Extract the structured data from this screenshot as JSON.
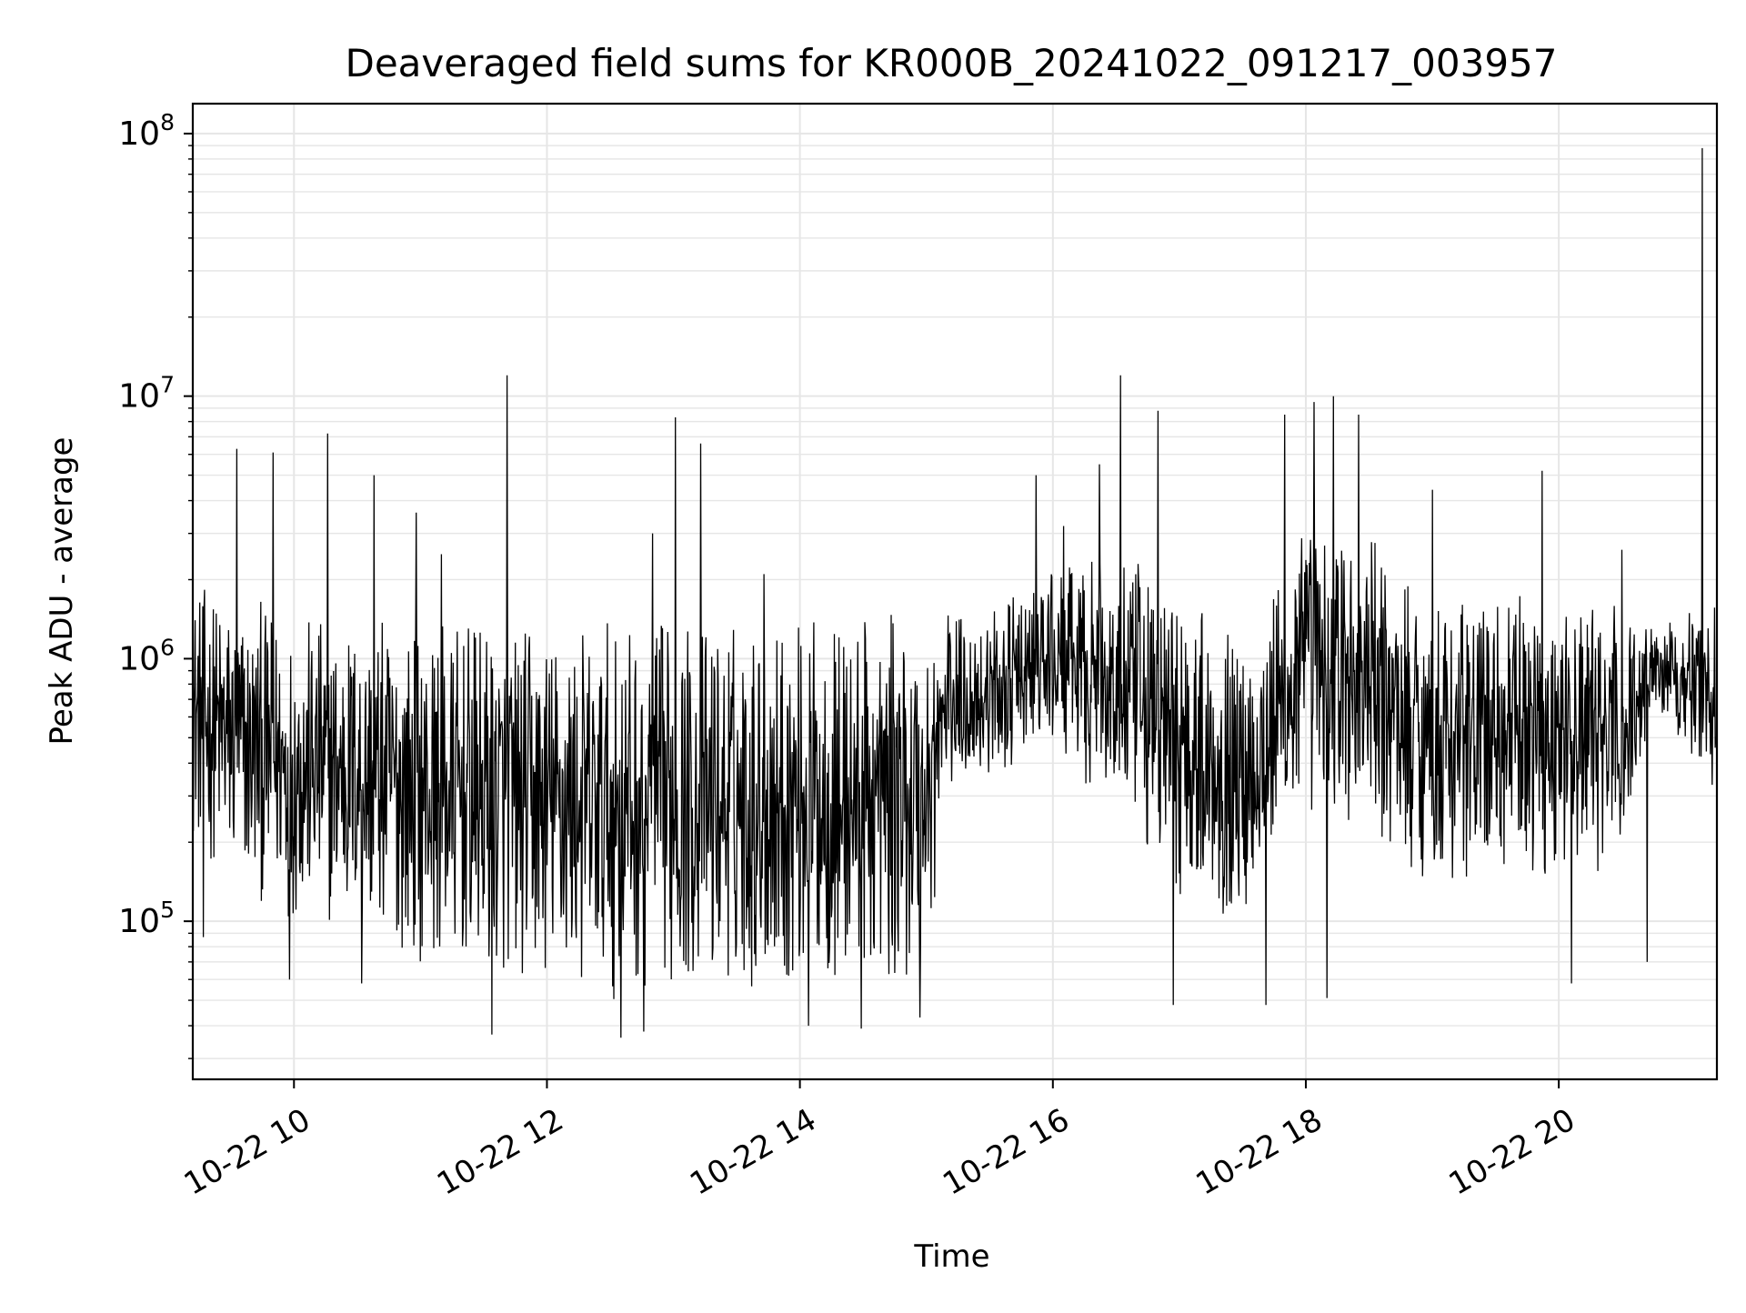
{
  "chart_data": {
    "type": "line",
    "title": "Deaveraged field sums for KR000B_20241022_091217_003957",
    "xlabel": "Time",
    "ylabel": "Peak ADU - average",
    "yscale": "log",
    "ylim": [
      25000,
      130000000
    ],
    "xlim": [
      "10-22 09:12",
      "10-22 21:15"
    ],
    "grid": true,
    "line_color": "#000000",
    "grid_color": "#e6e6e6",
    "x_ticks": [
      {
        "label": "10-22 10",
        "hour": 10
      },
      {
        "label": "10-22 12",
        "hour": 12
      },
      {
        "label": "10-22 14",
        "hour": 14
      },
      {
        "label": "10-22 16",
        "hour": 16
      },
      {
        "label": "10-22 18",
        "hour": 18
      },
      {
        "label": "10-22 20",
        "hour": 20
      }
    ],
    "y_ticks": [
      {
        "base": "10",
        "exp": "5",
        "value": 100000
      },
      {
        "base": "10",
        "exp": "6",
        "value": 1000000
      },
      {
        "base": "10",
        "exp": "7",
        "value": 10000000
      },
      {
        "base": "10",
        "exp": "8",
        "value": 100000000
      }
    ],
    "envelope": [
      {
        "t": "09:12",
        "low": 200000,
        "high": 2000000
      },
      {
        "t": "09:30",
        "low": 130000,
        "high": 1800000
      },
      {
        "t": "10:00",
        "low": 100000,
        "high": 1500000
      },
      {
        "t": "10:30",
        "low": 90000,
        "high": 1500000
      },
      {
        "t": "11:00",
        "low": 70000,
        "high": 1400000
      },
      {
        "t": "11:30",
        "low": 60000,
        "high": 1400000
      },
      {
        "t": "12:00",
        "low": 55000,
        "high": 1400000
      },
      {
        "t": "12:30",
        "low": 50000,
        "high": 1400000
      },
      {
        "t": "13:00",
        "low": 55000,
        "high": 1500000
      },
      {
        "t": "13:30",
        "low": 55000,
        "high": 1500000
      },
      {
        "t": "14:00",
        "low": 55000,
        "high": 1500000
      },
      {
        "t": "14:30",
        "low": 55000,
        "high": 1500000
      },
      {
        "t": "15:00",
        "low": 60000,
        "high": 1500000
      },
      {
        "t": "15:10",
        "low": 300000,
        "high": 1600000
      },
      {
        "t": "15:30",
        "low": 350000,
        "high": 1500000
      },
      {
        "t": "16:00",
        "low": 450000,
        "high": 2200000
      },
      {
        "t": "16:30",
        "low": 250000,
        "high": 2500000
      },
      {
        "t": "17:00",
        "low": 120000,
        "high": 2000000
      },
      {
        "t": "17:30",
        "low": 100000,
        "high": 1200000
      },
      {
        "t": "18:00",
        "low": 250000,
        "high": 3500000
      },
      {
        "t": "18:30",
        "low": 200000,
        "high": 3000000
      },
      {
        "t": "19:00",
        "low": 130000,
        "high": 1800000
      },
      {
        "t": "19:30",
        "low": 150000,
        "high": 1800000
      },
      {
        "t": "20:00",
        "low": 150000,
        "high": 1800000
      },
      {
        "t": "20:30",
        "low": 150000,
        "high": 1600000
      },
      {
        "t": "20:45",
        "low": 700000,
        "high": 1400000
      },
      {
        "t": "21:15",
        "low": 300000,
        "high": 1700000
      }
    ],
    "peaks": [
      {
        "t": "09:33",
        "value": 6300000
      },
      {
        "t": "09:50",
        "value": 6100000
      },
      {
        "t": "10:16",
        "value": 7200000
      },
      {
        "t": "10:38",
        "value": 5000000
      },
      {
        "t": "10:58",
        "value": 3600000
      },
      {
        "t": "11:10",
        "value": 2500000
      },
      {
        "t": "11:41",
        "value": 12000000
      },
      {
        "t": "12:50",
        "value": 3000000
      },
      {
        "t": "13:01",
        "value": 8300000
      },
      {
        "t": "13:13",
        "value": 6600000
      },
      {
        "t": "13:43",
        "value": 2100000
      },
      {
        "t": "15:52",
        "value": 5000000
      },
      {
        "t": "16:05",
        "value": 3200000
      },
      {
        "t": "16:22",
        "value": 5500000
      },
      {
        "t": "16:32",
        "value": 12000000
      },
      {
        "t": "16:50",
        "value": 8800000
      },
      {
        "t": "17:50",
        "value": 8500000
      },
      {
        "t": "18:04",
        "value": 9500000
      },
      {
        "t": "18:13",
        "value": 10000000
      },
      {
        "t": "18:25",
        "value": 8500000
      },
      {
        "t": "19:00",
        "value": 4400000
      },
      {
        "t": "19:52",
        "value": 5200000
      },
      {
        "t": "20:30",
        "value": 2600000
      },
      {
        "t": "21:08",
        "value": 88000000
      }
    ],
    "dips": [
      {
        "t": "09:17",
        "value": 87000
      },
      {
        "t": "09:58",
        "value": 60000
      },
      {
        "t": "10:32",
        "value": 58000
      },
      {
        "t": "11:34",
        "value": 37000
      },
      {
        "t": "12:35",
        "value": 36000
      },
      {
        "t": "12:46",
        "value": 38000
      },
      {
        "t": "14:04",
        "value": 40000
      },
      {
        "t": "14:29",
        "value": 39000
      },
      {
        "t": "14:57",
        "value": 43000
      },
      {
        "t": "16:57",
        "value": 48000
      },
      {
        "t": "17:41",
        "value": 48000
      },
      {
        "t": "18:10",
        "value": 51000
      },
      {
        "t": "20:06",
        "value": 58000
      },
      {
        "t": "20:42",
        "value": 70000
      }
    ]
  }
}
